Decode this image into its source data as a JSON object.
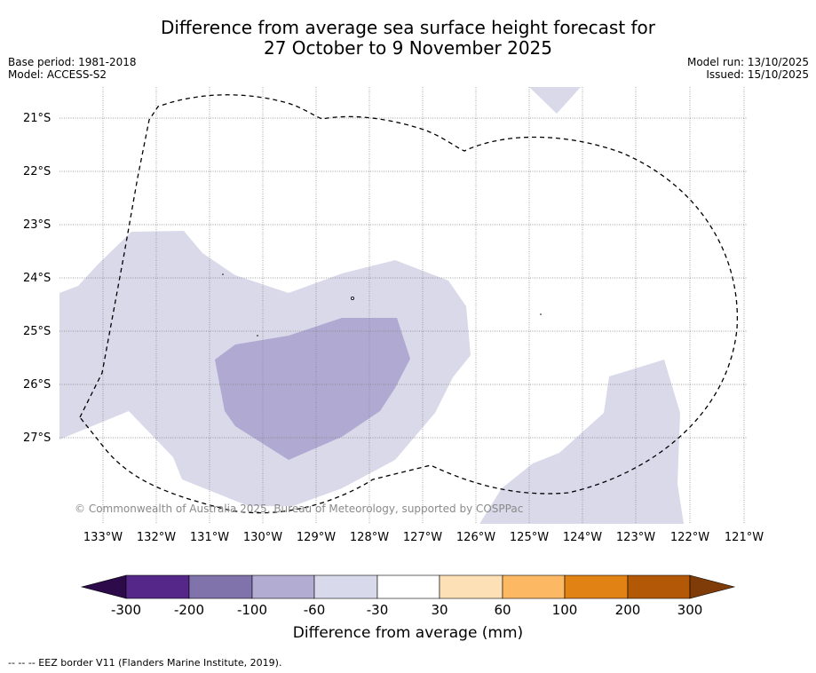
{
  "title": {
    "line1": "Difference from average sea surface height forecast for",
    "line2": "27 October to 9 November 2025"
  },
  "meta": {
    "base_period": "Base period: 1981-2018",
    "model": "Model: ACCESS-S2",
    "model_run": "Model run: 13/10/2025",
    "issued": "Issued: 15/10/2025"
  },
  "map": {
    "lat_labels": [
      "21°S",
      "22°S",
      "23°S",
      "24°S",
      "25°S",
      "26°S",
      "27°S"
    ],
    "lon_labels": [
      "133°W",
      "132°W",
      "131°W",
      "130°W",
      "129°W",
      "128°W",
      "127°W",
      "126°W",
      "125°W",
      "124°W",
      "123°W",
      "122°W",
      "121°W"
    ],
    "copyright": "© Commonwealth of Australia 2025, Bureau of Meteorology, supported by COSPPac",
    "colors": {
      "band_light": "#d9d9ea",
      "band_medium": "#b0aad2",
      "grid": "#808080",
      "eez_border": "#000000"
    }
  },
  "colorbar": {
    "ticks": [
      "-300",
      "-200",
      "-100",
      "-60",
      "-30",
      "30",
      "60",
      "100",
      "200",
      "300"
    ],
    "colors": {
      "under": "#2d0a4a",
      "segments": [
        "#542788",
        "#8073ac",
        "#b2abd2",
        "#d8daeb",
        "#ffffff",
        "#fee0b6",
        "#fdb863",
        "#e08214",
        "#b35806"
      ],
      "over": "#7f3b08"
    },
    "label": "Difference from average (mm)"
  },
  "footer": "--  --  -- EEZ border V11 (Flanders Marine Institute, 2019)."
}
